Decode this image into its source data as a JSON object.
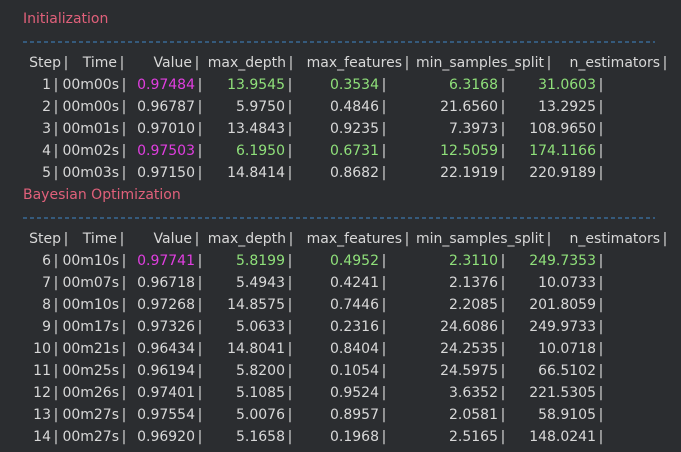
{
  "separator": "|",
  "sections": [
    {
      "title": "Initialization",
      "header": [
        "Step",
        "Time",
        "Value",
        "max_depth",
        "max_features",
        "min_samples_split",
        "n_estimators"
      ],
      "rows": [
        {
          "cells": [
            "1",
            "00m00s",
            "0.97484",
            "13.9545",
            "0.3534",
            "6.3168",
            "31.0603"
          ],
          "value_color": "#e03ee0",
          "param_color": "#8fe07a"
        },
        {
          "cells": [
            "2",
            "00m00s",
            "0.96787",
            "5.9750",
            "0.4846",
            "21.6560",
            "13.2925"
          ]
        },
        {
          "cells": [
            "3",
            "00m01s",
            "0.97010",
            "13.4843",
            "0.9235",
            "7.3973",
            "108.9650"
          ]
        },
        {
          "cells": [
            "4",
            "00m02s",
            "0.97503",
            "6.1950",
            "0.6731",
            "12.5059",
            "174.1166"
          ],
          "value_color": "#e03ee0",
          "param_color": "#8fe07a"
        },
        {
          "cells": [
            "5",
            "00m03s",
            "0.97150",
            "14.8414",
            "0.8682",
            "22.1919",
            "220.9189"
          ]
        }
      ]
    },
    {
      "title": "Bayesian Optimization",
      "header": [
        "Step",
        "Time",
        "Value",
        "max_depth",
        "max_features",
        "min_samples_split",
        "n_estimators"
      ],
      "rows": [
        {
          "cells": [
            "6",
            "00m10s",
            "0.97741",
            "5.8199",
            "0.4952",
            "2.3110",
            "249.7353"
          ],
          "value_color": "#e03ee0",
          "param_color": "#8fe07a"
        },
        {
          "cells": [
            "7",
            "00m07s",
            "0.96718",
            "5.4943",
            "0.4241",
            "2.1376",
            "10.0733"
          ]
        },
        {
          "cells": [
            "8",
            "00m10s",
            "0.97268",
            "14.8575",
            "0.7446",
            "2.2085",
            "201.8059"
          ]
        },
        {
          "cells": [
            "9",
            "00m17s",
            "0.97326",
            "5.0633",
            "0.2316",
            "24.6086",
            "249.9733"
          ]
        },
        {
          "cells": [
            "10",
            "00m21s",
            "0.96434",
            "14.8041",
            "0.8404",
            "24.2535",
            "10.0718"
          ]
        },
        {
          "cells": [
            "11",
            "00m25s",
            "0.96194",
            "5.8200",
            "0.1054",
            "24.5975",
            "66.5102"
          ]
        },
        {
          "cells": [
            "12",
            "00m26s",
            "0.97401",
            "5.1085",
            "0.9524",
            "3.6352",
            "221.5305"
          ]
        },
        {
          "cells": [
            "13",
            "00m27s",
            "0.97554",
            "5.0076",
            "0.8957",
            "2.0581",
            "58.9105"
          ]
        },
        {
          "cells": [
            "14",
            "00m27s",
            "0.96920",
            "5.1658",
            "0.1968",
            "2.5165",
            "148.0241"
          ]
        }
      ]
    }
  ]
}
